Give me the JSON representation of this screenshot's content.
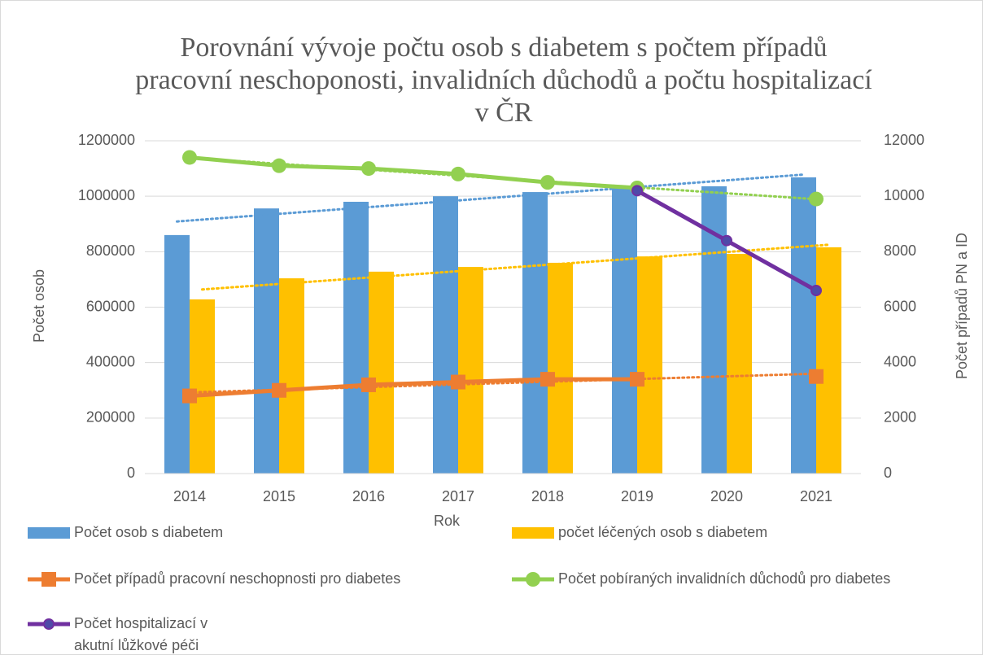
{
  "chart_data": {
    "type": "bar",
    "title": "Porovnání vývoje počtu osob s diabetem s počtem případů pracovní neschoponosti, invalidních důchodů a počtu hospitalizací v ČR",
    "x_label": "Rok",
    "y_label": "Počet osob",
    "y2_label": "Počet případů PN a ID",
    "categories": [
      "2014",
      "2015",
      "2016",
      "2017",
      "2018",
      "2019",
      "2020",
      "2021"
    ],
    "ylim": [
      0,
      1200000
    ],
    "yticks": [
      0,
      200000,
      400000,
      600000,
      800000,
      1000000,
      1200000
    ],
    "y2lim": [
      0,
      12000
    ],
    "y2ticks": [
      0,
      2000,
      4000,
      6000,
      8000,
      10000,
      12000
    ],
    "grid": true,
    "series": [
      {
        "name": "Počet osob s diabetem",
        "type": "bar",
        "color": "#5b9bd5",
        "trendline": true,
        "values": [
          860000,
          956000,
          980000,
          1000000,
          1015000,
          1033000,
          1036000,
          1068000
        ]
      },
      {
        "name": "počet léčených osob s diabetem",
        "type": "bar",
        "color": "#ffc000",
        "trendline": true,
        "values": [
          628000,
          704000,
          728000,
          745000,
          760000,
          783000,
          792000,
          816000
        ]
      },
      {
        "name": "Počet případů pracovní neschopnosti pro diabetes",
        "type": "line",
        "axis": "y2",
        "color": "#ed7d31",
        "marker": "square",
        "trendline": true,
        "values": [
          2800,
          3000,
          3200,
          3300,
          3400,
          3400,
          null,
          3500
        ]
      },
      {
        "name": "Počet pobíraných invalidních důchodů pro diabetes",
        "type": "line",
        "axis": "y2",
        "color": "#92d050",
        "marker": "circle",
        "trendline": true,
        "values": [
          11400,
          11100,
          11000,
          10800,
          10500,
          10300,
          null,
          9900
        ]
      },
      {
        "name": "Počet hospitalizací v akutní lůžkové péči",
        "type": "line",
        "axis": "y2",
        "color": "#7030a0",
        "marker": "dot",
        "trendline": false,
        "values": [
          null,
          null,
          null,
          null,
          null,
          10200,
          8400,
          6600
        ]
      }
    ]
  }
}
